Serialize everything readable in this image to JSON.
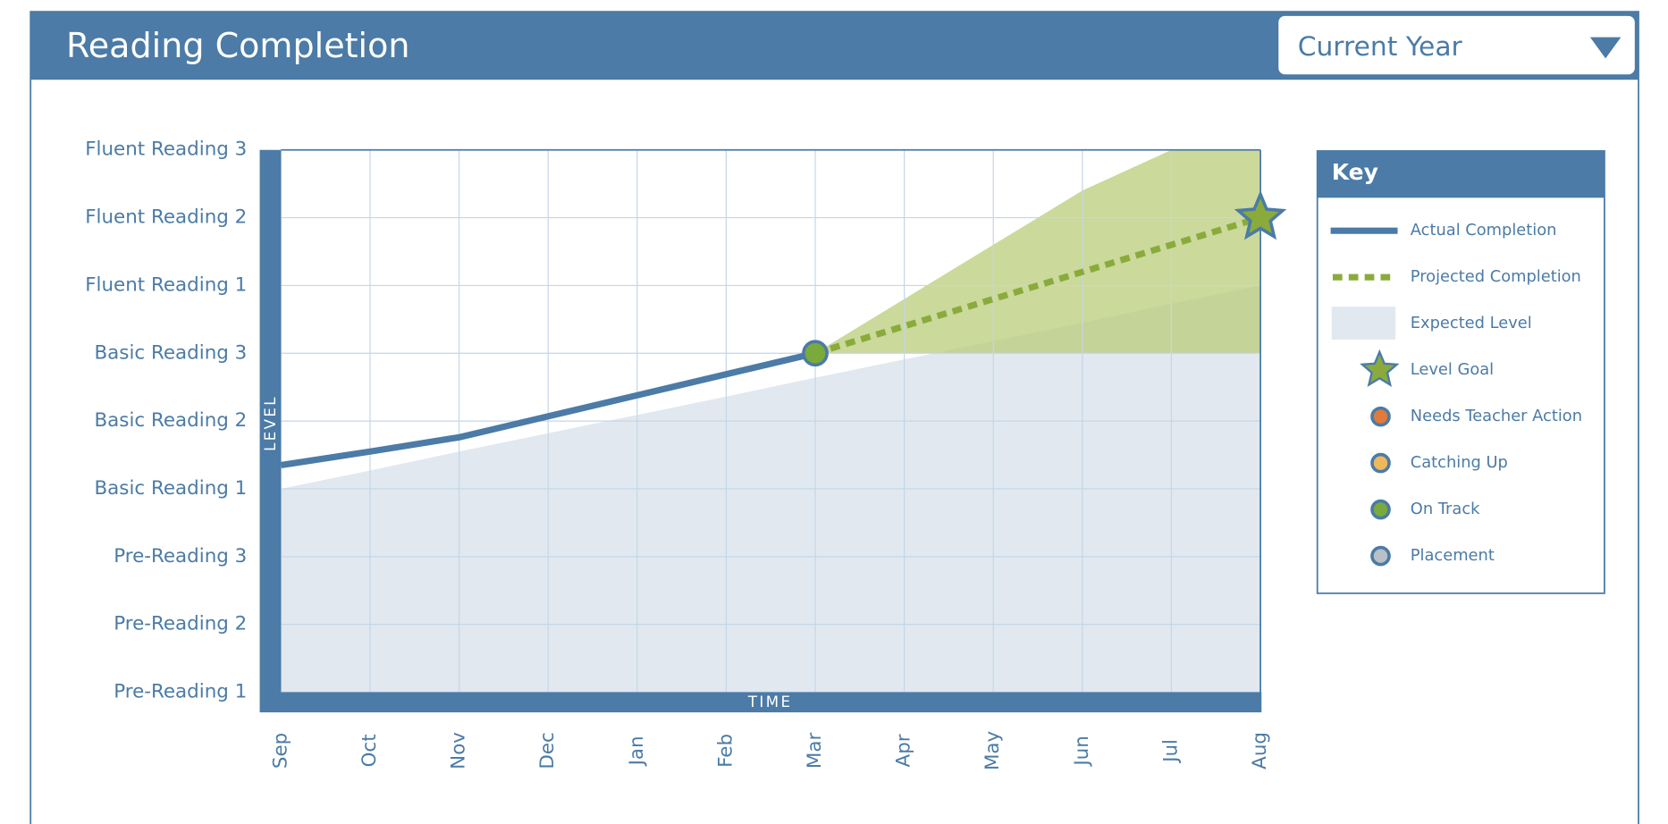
{
  "header": {
    "title": "Reading Completion",
    "dropdown": "Current Year"
  },
  "chart_data": {
    "type": "line",
    "y_axis_label": "LEVEL",
    "x_axis_label": "TIME",
    "categories": [
      "Sep",
      "Oct",
      "Nov",
      "Dec",
      "Jan",
      "Feb",
      "Mar",
      "Apr",
      "May",
      "Jun",
      "Jul",
      "Aug"
    ],
    "ylim": [
      1,
      9
    ],
    "yticks": [
      {
        "value": 1,
        "label": "Pre-Reading 1"
      },
      {
        "value": 2,
        "label": "Pre-Reading 2"
      },
      {
        "value": 3,
        "label": "Pre-Reading 3"
      },
      {
        "value": 4,
        "label": "Basic Reading 1"
      },
      {
        "value": 5,
        "label": "Basic Reading 2"
      },
      {
        "value": 6,
        "label": "Basic Reading 3"
      },
      {
        "value": 7,
        "label": "Fluent Reading 1"
      },
      {
        "value": 8,
        "label": "Fluent Reading 2"
      },
      {
        "value": 9,
        "label": "Fluent Reading 3"
      }
    ],
    "grid": true,
    "series": [
      {
        "name": "Actual Completion",
        "color": "#4b7ba6",
        "style": "solid",
        "values": [
          4.35,
          4.55,
          4.76,
          5.07,
          5.38,
          5.69,
          6.0,
          null,
          null,
          null,
          null,
          null
        ]
      },
      {
        "name": "Projected Completion",
        "color": "#8aab3c",
        "style": "dashed",
        "values": [
          null,
          null,
          null,
          null,
          null,
          null,
          6.0,
          6.4,
          6.8,
          7.2,
          7.6,
          8.0
        ]
      },
      {
        "name": "Expected Level",
        "color": "#e1e8f0",
        "style": "area",
        "values": [
          4.0,
          4.27,
          4.55,
          4.82,
          5.09,
          5.36,
          5.64,
          5.91,
          6.18,
          6.45,
          6.73,
          7.0
        ]
      }
    ],
    "band": {
      "color": "#b9cc7a",
      "lower": [
        null,
        null,
        null,
        null,
        null,
        null,
        6,
        6,
        6,
        6,
        6,
        6
      ],
      "upper": [
        null,
        null,
        null,
        null,
        null,
        null,
        6,
        6.8,
        7.6,
        8.4,
        9,
        9
      ]
    },
    "goal": {
      "name": "Level Goal",
      "x": "Aug",
      "value": 8,
      "color": "#8aab3c"
    },
    "statuses": [
      {
        "name": "Needs Teacher Action",
        "color": "#e07b39"
      },
      {
        "name": "Catching Up",
        "color": "#efb85c"
      },
      {
        "name": "On Track",
        "color": "#7aaa3a"
      },
      {
        "name": "Placement",
        "color": "#b9c0c8"
      }
    ],
    "markers": [
      {
        "x": "Mar",
        "value": 6,
        "status": "On Track"
      }
    ],
    "legend_title": "Key"
  }
}
